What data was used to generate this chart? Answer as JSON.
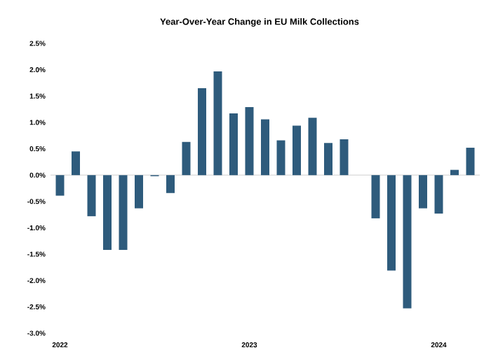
{
  "chart_data": {
    "type": "bar",
    "title": "Year-Over-Year Change in EU Milk Collections",
    "categories": [
      "2022",
      null,
      null,
      null,
      null,
      null,
      null,
      null,
      null,
      null,
      null,
      null,
      "2023",
      null,
      null,
      null,
      null,
      null,
      null,
      null,
      null,
      null,
      null,
      null,
      "2024",
      null,
      null
    ],
    "values": [
      -0.39,
      0.45,
      -0.78,
      -1.42,
      -1.42,
      -0.63,
      -0.02,
      -0.34,
      0.63,
      1.65,
      1.97,
      1.17,
      1.29,
      1.06,
      0.66,
      0.94,
      1.09,
      0.61,
      0.68,
      null,
      -0.82,
      -1.81,
      -2.53,
      -0.63,
      -0.73,
      0.1,
      0.52
    ],
    "color": "#2e5b7c",
    "ylim": [
      -3,
      2.5
    ],
    "yticks": [
      {
        "value": -3,
        "label": "-3.0%"
      },
      {
        "value": -2.5,
        "label": "-2.5%"
      },
      {
        "value": -2,
        "label": "-2.0%"
      },
      {
        "value": -1.5,
        "label": "-1.5%"
      },
      {
        "value": -1,
        "label": "-1.0%"
      },
      {
        "value": -0.5,
        "label": "-0.5%"
      },
      {
        "value": 0,
        "label": "0.0%"
      },
      {
        "value": 0.5,
        "label": "0.5%"
      },
      {
        "value": 1,
        "label": "1.0%"
      },
      {
        "value": 1.5,
        "label": "1.5%"
      },
      {
        "value": 2,
        "label": "2.0%"
      },
      {
        "value": 2.5,
        "label": "2.5%"
      }
    ],
    "ref_lines": [
      {
        "axis": "y",
        "value": 0,
        "color": "#d9d9d9"
      }
    ],
    "grid": false
  }
}
